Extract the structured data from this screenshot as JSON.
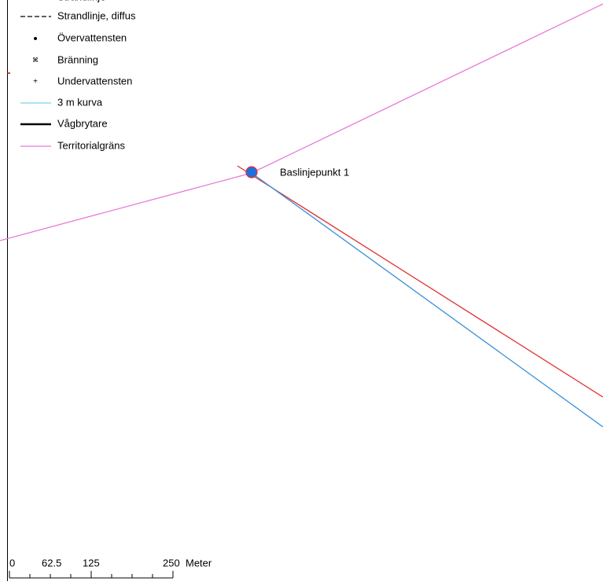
{
  "legend": {
    "items": [
      "Strandlinje",
      "Strandlinje, diffus",
      "Övervattensten",
      "Bränning",
      "Undervattensten",
      "3 m kurva",
      "Vågbrytare",
      "Territorialgräns"
    ]
  },
  "map": {
    "point_label": "Baslinjepunkt 1"
  },
  "scale_bar": {
    "labels": [
      "0",
      "62.5",
      "125",
      "250"
    ],
    "unit": "Meter"
  }
}
